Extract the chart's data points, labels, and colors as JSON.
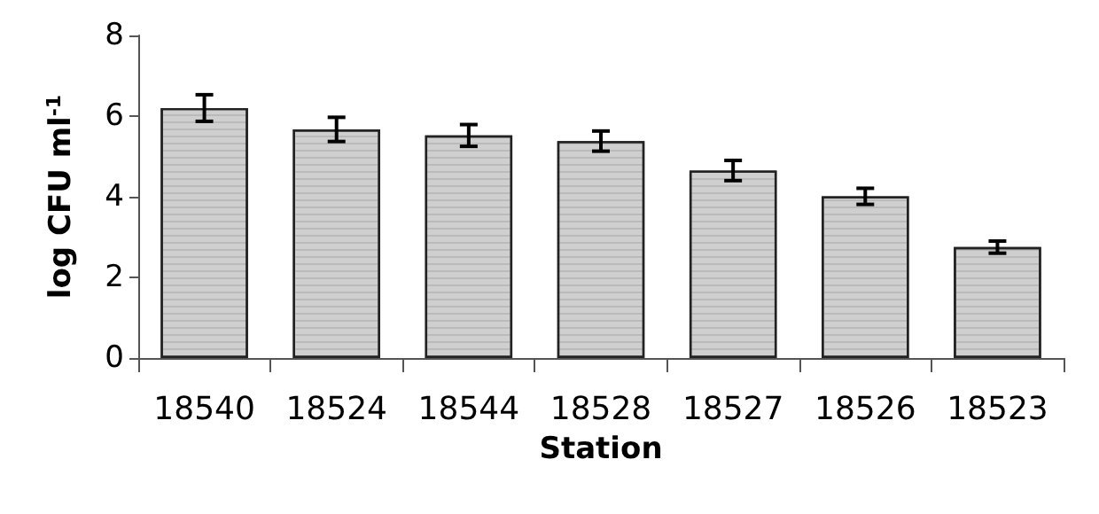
{
  "chart_data": {
    "type": "bar",
    "xlabel": "Station",
    "ylabel": "log CFU ml$^{-1}$",
    "categories": [
      "18540",
      "18524",
      "18544",
      "18528",
      "18527",
      "18526",
      "18523"
    ],
    "values": [
      6.2,
      5.67,
      5.52,
      5.38,
      4.65,
      4.01,
      2.75
    ],
    "errors": [
      0.33,
      0.3,
      0.27,
      0.25,
      0.25,
      0.2,
      0.15
    ],
    "color": "#cfcfcf",
    "ylim": [
      0,
      8
    ],
    "yticks": [
      0,
      2,
      4,
      6,
      8
    ]
  }
}
